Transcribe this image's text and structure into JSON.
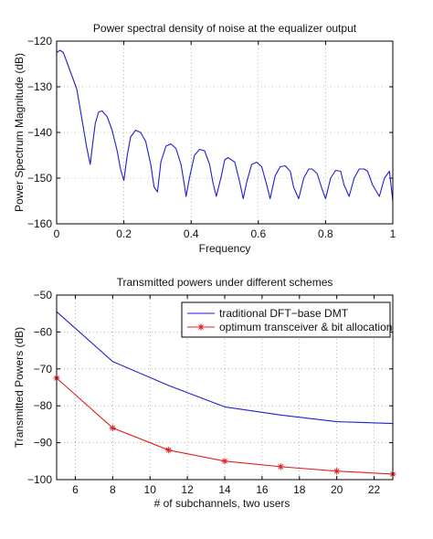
{
  "chart_data": [
    {
      "type": "line",
      "title": "Power spectral density of noise at the equalizer output",
      "xlabel": "Frequency",
      "ylabel": "Power Spectrum Magnitude (dB)",
      "xlim": [
        0,
        1
      ],
      "ylim": [
        -160,
        -120
      ],
      "grid": true,
      "xticks": [
        0,
        0.2,
        0.4,
        0.6,
        0.8,
        1
      ],
      "xtick_labels": [
        "0",
        "0.2",
        "0.4",
        "0.6",
        "0.8",
        "1"
      ],
      "yticks": [
        -160,
        -150,
        -140,
        -130,
        -120
      ],
      "ytick_labels": [
        "−160",
        "−150",
        "−140",
        "−130",
        "−120"
      ],
      "line_color": "#2020d0",
      "series": [
        {
          "x": [
            0,
            0.01,
            0.02,
            0.03,
            0.045,
            0.06,
            0.075,
            0.09,
            0.1,
            0.108,
            0.115,
            0.125,
            0.135,
            0.15,
            0.165,
            0.18,
            0.19,
            0.2,
            0.21,
            0.22,
            0.235,
            0.25,
            0.265,
            0.28,
            0.29,
            0.3,
            0.31,
            0.325,
            0.34,
            0.355,
            0.37,
            0.38,
            0.385,
            0.395,
            0.41,
            0.425,
            0.44,
            0.455,
            0.465,
            0.475,
            0.49,
            0.5,
            0.51,
            0.53,
            0.545,
            0.555,
            0.565,
            0.58,
            0.595,
            0.61,
            0.625,
            0.635,
            0.65,
            0.665,
            0.68,
            0.695,
            0.705,
            0.72,
            0.735,
            0.75,
            0.76,
            0.775,
            0.79,
            0.8,
            0.815,
            0.83,
            0.845,
            0.855,
            0.87,
            0.885,
            0.9,
            0.915,
            0.925,
            0.94,
            0.96,
            0.975,
            0.99,
            1.0
          ],
          "y": [
            -122.5,
            -122,
            -122.5,
            -124.5,
            -127.5,
            -130.5,
            -137,
            -143.5,
            -147,
            -142,
            -138,
            -135.5,
            -135.3,
            -136.5,
            -139.5,
            -144,
            -148,
            -150.5,
            -145,
            -141,
            -139.5,
            -140,
            -142,
            -147,
            -152,
            -153,
            -146.5,
            -143,
            -142.5,
            -143.5,
            -147,
            -151.5,
            -154,
            -150,
            -145,
            -143.7,
            -144,
            -147,
            -151,
            -154,
            -149.5,
            -146,
            -145.5,
            -146.5,
            -151,
            -154.5,
            -151,
            -147,
            -146.5,
            -147.5,
            -151.5,
            -154.5,
            -149.5,
            -147.5,
            -147.3,
            -148.5,
            -152,
            -154.5,
            -150,
            -148,
            -148,
            -149,
            -152.5,
            -154.5,
            -150,
            -148.3,
            -148.5,
            -151.5,
            -154,
            -150,
            -148,
            -148,
            -148.5,
            -151.5,
            -154,
            -150,
            -148.5,
            -155
          ]
        }
      ]
    },
    {
      "type": "line",
      "title": "Transmitted powers under different schemes",
      "xlabel": "# of subchannels, two users",
      "ylabel": "Transmitted Powers (dB)",
      "xlim": [
        5,
        23
      ],
      "ylim": [
        -100,
        -50
      ],
      "grid": true,
      "xticks": [
        6,
        8,
        10,
        12,
        14,
        16,
        18,
        20,
        22
      ],
      "xtick_labels": [
        "6",
        "8",
        "10",
        "12",
        "14",
        "16",
        "18",
        "20",
        "22"
      ],
      "yticks": [
        -100,
        -90,
        -80,
        -70,
        -60,
        -50
      ],
      "ytick_labels": [
        "−100",
        "−90",
        "−80",
        "−70",
        "−60",
        "−50"
      ],
      "legend_position": "top-right",
      "series": [
        {
          "name": "traditional DFT−base DMT",
          "color": "#2020d0",
          "marker": "none",
          "x": [
            5,
            8,
            11,
            14,
            17,
            20,
            23
          ],
          "y": [
            -54.5,
            -68,
            -74.5,
            -80.3,
            -82.5,
            -84.3,
            -84.8
          ]
        },
        {
          "name": "optimum transceiver & bit allocation",
          "color": "#e02020",
          "marker": "star",
          "x": [
            5,
            8,
            11,
            14,
            17,
            20,
            23
          ],
          "y": [
            -72.5,
            -86,
            -92,
            -95,
            -96.5,
            -97.7,
            -98.5
          ]
        }
      ]
    }
  ]
}
